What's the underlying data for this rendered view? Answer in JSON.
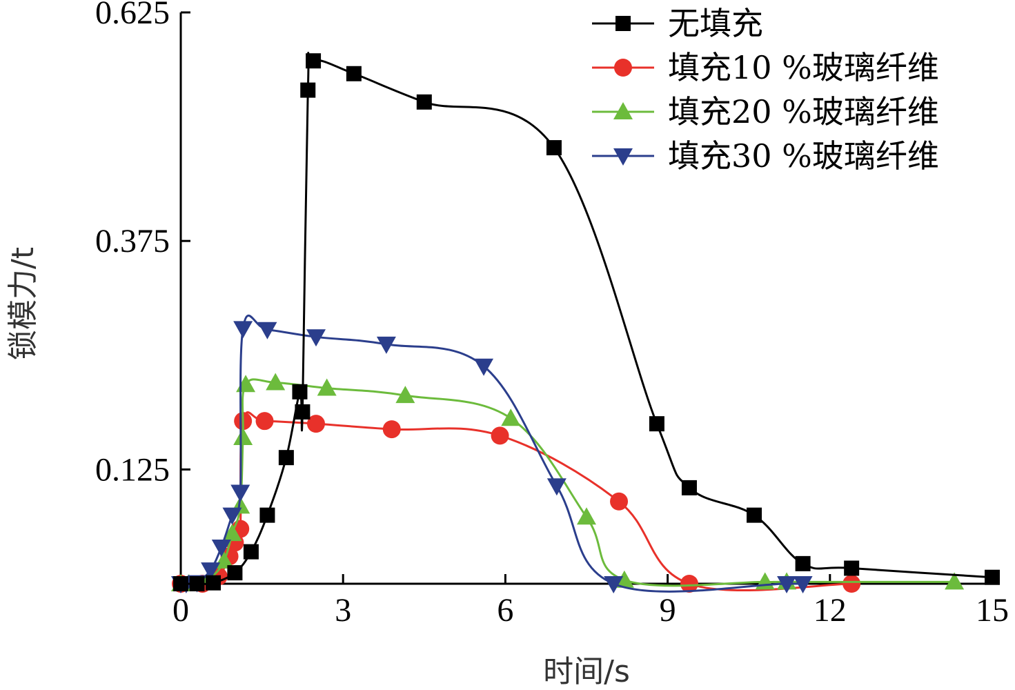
{
  "chart_data": {
    "type": "line",
    "title": "",
    "xlabel": "时间/s",
    "ylabel": "锁模力/t",
    "xlim": [
      0,
      15
    ],
    "ylim": [
      0,
      0.625
    ],
    "x_ticks": [
      0,
      3,
      6,
      9,
      12,
      15
    ],
    "y_ticks": [
      0.125,
      0.375,
      0.625
    ],
    "x_tick_labels": [
      "0",
      "3",
      "6",
      "9",
      "12",
      "15"
    ],
    "y_tick_labels": [
      "0.125",
      "0.375",
      "0.625"
    ],
    "grid": false,
    "legend_position": "top-right",
    "series": [
      {
        "name": "无填充",
        "color": "#000000",
        "marker": "square",
        "x": [
          0,
          0.3,
          0.6,
          1.0,
          1.3,
          1.6,
          1.95,
          2.2,
          2.25,
          2.35,
          2.45,
          3.2,
          4.5,
          6.9,
          8.8,
          9.4,
          10.6,
          11.5,
          12.4,
          15.0
        ],
        "y": [
          0.0,
          0.0,
          0.001,
          0.012,
          0.035,
          0.075,
          0.138,
          0.21,
          0.188,
          0.54,
          0.572,
          0.558,
          0.527,
          0.477,
          0.175,
          0.105,
          0.075,
          0.022,
          0.017,
          0.007
        ]
      },
      {
        "name": "填充10 %玻璃纤维",
        "color": "#e8312a",
        "marker": "circle",
        "x": [
          0,
          0.4,
          0.7,
          0.9,
          1.0,
          1.1,
          1.15,
          1.55,
          2.5,
          3.9,
          5.9,
          8.1,
          9.4,
          12.4
        ],
        "y": [
          0.0,
          0.0,
          0.008,
          0.03,
          0.045,
          0.06,
          0.178,
          0.178,
          0.175,
          0.169,
          0.162,
          0.09,
          0.0,
          0.0
        ]
      },
      {
        "name": "填充20 %玻璃纤维",
        "color": "#6cbb3c",
        "marker": "triangle-up",
        "x": [
          0,
          0.15,
          0.55,
          0.8,
          0.95,
          1.1,
          1.15,
          1.2,
          1.75,
          2.7,
          4.15,
          6.1,
          7.5,
          8.2,
          10.8,
          11.2,
          14.3
        ],
        "y": [
          0.0,
          0.0,
          0.007,
          0.025,
          0.055,
          0.085,
          0.16,
          0.218,
          0.22,
          0.214,
          0.206,
          0.181,
          0.073,
          0.004,
          0.002,
          0.002,
          0.002
        ]
      },
      {
        "name": "填充30 %玻璃纤维",
        "color": "#2b3e8c",
        "marker": "triangle-down",
        "x": [
          0,
          0.1,
          0.3,
          0.55,
          0.75,
          0.95,
          1.1,
          1.15,
          1.6,
          2.5,
          3.8,
          5.6,
          6.95,
          8.0,
          11.2,
          11.5
        ],
        "y": [
          0.0,
          0.0,
          0.001,
          0.015,
          0.04,
          0.075,
          0.1,
          0.279,
          0.278,
          0.27,
          0.262,
          0.238,
          0.107,
          0.0,
          0.0,
          0.0
        ]
      }
    ]
  }
}
